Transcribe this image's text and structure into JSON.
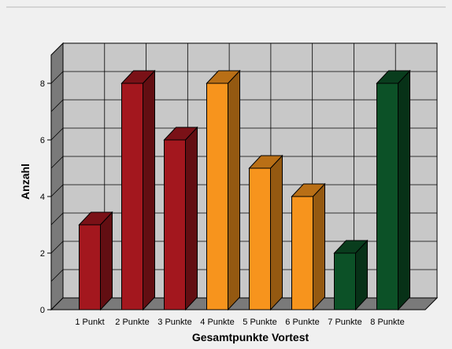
{
  "chart_data": {
    "type": "bar",
    "categories": [
      "1 Punkt",
      "2 Punkte",
      "3 Punkte",
      "4 Punkte",
      "5 Punkte",
      "6 Punkte",
      "7 Punkte",
      "8 Punkte"
    ],
    "values": [
      3,
      8,
      6,
      8,
      5,
      4,
      2,
      8
    ],
    "xlabel": "Gesamtpunkte Vortest",
    "ylabel": "Anzahl",
    "ylim": [
      0,
      9
    ],
    "yticks": [
      "0",
      "2",
      "4",
      "6",
      "8"
    ],
    "grid": true,
    "three_d": true,
    "colors": {
      "1 Punkt": "#a3171e",
      "2 Punkte": "#a3171e",
      "3 Punkte": "#a3171e",
      "4 Punkte": "#f7941d",
      "5 Punkte": "#f7941d",
      "6 Punkte": "#f7941d",
      "7 Punkte": "#0c5127",
      "8 Punkte": "#0c5127"
    }
  }
}
